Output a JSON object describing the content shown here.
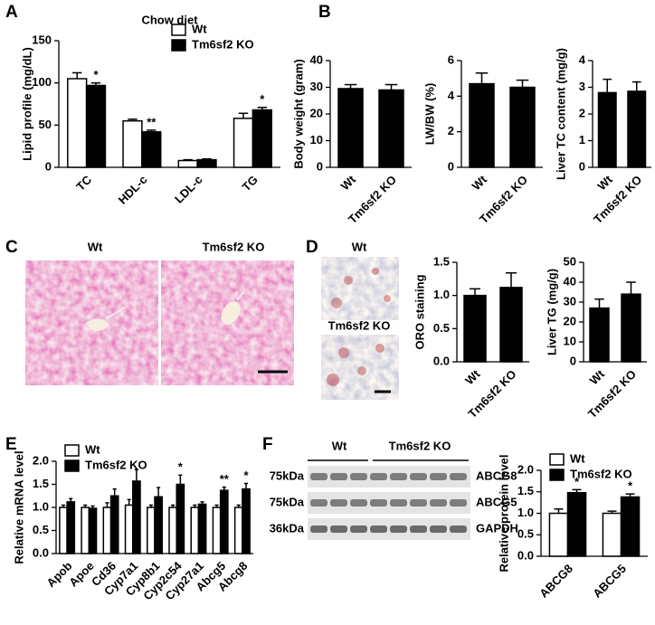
{
  "panels": [
    "A",
    "B",
    "C",
    "D",
    "E",
    "F"
  ],
  "histology": {
    "labels": [
      "Wt",
      "Tm6sf2 KO"
    ]
  },
  "oro": {
    "labels": [
      "Wt",
      "Tm6sf2 KO"
    ]
  },
  "western_blot": {
    "groups": [
      "Wt",
      "Tm6sf2 KO"
    ],
    "sizes": [
      "75kDa",
      "75kDa",
      "36kDa"
    ],
    "proteins": [
      "ABCG8",
      "ABCG5",
      "GAPDH"
    ]
  },
  "chart_data": [
    {
      "type": "bar",
      "title": "Chow diet",
      "ylabel": "Lipid profile (mg/dL)",
      "categories": [
        "TC",
        "HDL-c",
        "LDL-c",
        "TG"
      ],
      "series": [
        {
          "name": "Wt",
          "color": "#ffffff",
          "values": [
            105,
            55,
            8,
            58
          ],
          "errors": [
            7,
            2,
            1,
            6
          ]
        },
        {
          "name": "Tm6sf2 KO",
          "color": "#000000",
          "values": [
            97,
            42,
            9,
            68
          ],
          "errors": [
            3,
            2,
            1,
            3
          ],
          "annotations": [
            "*",
            "**",
            null,
            "*"
          ]
        }
      ],
      "ylim": [
        0,
        150
      ],
      "yticks": [
        0,
        50,
        100,
        150
      ],
      "legend": "upper right"
    },
    {
      "type": "bar",
      "ylabel": "Body weight (gram)",
      "categories": [
        "Wt",
        "Tm6sf2 KO"
      ],
      "values": [
        29.5,
        29
      ],
      "errors": [
        1.5,
        2
      ],
      "color": "#000000",
      "ylim": [
        0,
        40
      ],
      "yticks": [
        0,
        10,
        20,
        30,
        40
      ]
    },
    {
      "type": "bar",
      "ylabel": "LW/BW (%)",
      "categories": [
        "Wt",
        "Tm6sf2 KO"
      ],
      "values": [
        4.7,
        4.5
      ],
      "errors": [
        0.6,
        0.4
      ],
      "color": "#000000",
      "ylim": [
        0,
        6
      ],
      "yticks": [
        0,
        2,
        4,
        6
      ]
    },
    {
      "type": "bar",
      "ylabel": "Liver TC content (mg/g)",
      "categories": [
        "Wt",
        "Tm6sf2 KO"
      ],
      "values": [
        2.8,
        2.85
      ],
      "errors": [
        0.5,
        0.35
      ],
      "color": "#000000",
      "ylim": [
        0,
        4
      ],
      "yticks": [
        0,
        1,
        2,
        3,
        4
      ]
    },
    {
      "type": "bar",
      "ylabel": "ORO staining",
      "categories": [
        "Wt",
        "Tm6sf2 KO"
      ],
      "values": [
        1.0,
        1.12
      ],
      "errors": [
        0.1,
        0.22
      ],
      "color": "#000000",
      "ylim": [
        0,
        1.5
      ],
      "yticks": [
        {
          "value": 0,
          "label": "0.0"
        },
        0.5,
        {
          "value": 1,
          "label": "1.0"
        },
        1.5
      ]
    },
    {
      "type": "bar",
      "ylabel": "Liver TG (mg/g)",
      "categories": [
        "Wt",
        "Tm6sf2 KO"
      ],
      "values": [
        27,
        34
      ],
      "errors": [
        4.5,
        6
      ],
      "color": "#000000",
      "ylim": [
        0,
        50
      ],
      "yticks": [
        0,
        10,
        20,
        30,
        40,
        50
      ]
    },
    {
      "type": "bar",
      "ylabel": "Relative mRNA level",
      "categories": [
        "Apob",
        "Apoe",
        "Cd36",
        "Cyp7a1",
        "Cyp8b1",
        "Cyp2c54",
        "Cyp27a1",
        "Abcg5",
        "Abcg8"
      ],
      "series": [
        {
          "name": "Wt",
          "color": "#ffffff",
          "values": [
            1,
            1,
            1,
            1.05,
            1,
            1,
            1,
            1,
            1
          ],
          "errors": [
            0.05,
            0.05,
            0.1,
            0.12,
            0.05,
            0.05,
            0.05,
            0.05,
            0.05
          ]
        },
        {
          "name": "Tm6sf2 KO",
          "color": "#000000",
          "values": [
            1.12,
            0.98,
            1.25,
            1.57,
            1.23,
            1.5,
            1.07,
            1.37,
            1.4
          ],
          "errors": [
            0.07,
            0.05,
            0.15,
            0.25,
            0.2,
            0.2,
            0.05,
            0.07,
            0.12
          ],
          "annotations": [
            null,
            null,
            null,
            null,
            null,
            "*",
            null,
            "**",
            "*"
          ]
        }
      ],
      "ylim": [
        0,
        2
      ],
      "yticks": [
        {
          "value": 0,
          "label": "0.0"
        },
        0.5,
        {
          "value": 1,
          "label": "1.0"
        },
        1.5,
        {
          "value": 2,
          "label": "2.0"
        }
      ],
      "legend": "upper left"
    },
    {
      "type": "bar",
      "ylabel": "Relative protein level",
      "categories": [
        "ABCG8",
        "ABCG5"
      ],
      "series": [
        {
          "name": "Wt",
          "color": "#ffffff",
          "values": [
            1.0,
            1.0
          ],
          "errors": [
            0.1,
            0.05
          ]
        },
        {
          "name": "Tm6sf2 KO",
          "color": "#000000",
          "values": [
            1.48,
            1.38
          ],
          "errors": [
            0.07,
            0.07
          ],
          "annotations": [
            "*",
            "*"
          ]
        }
      ],
      "ylim": [
        0,
        2
      ],
      "yticks": [
        {
          "value": 0,
          "label": "0.0"
        },
        0.5,
        {
          "value": 1,
          "label": "1.0"
        },
        1.5,
        {
          "value": 2,
          "label": "2.0"
        }
      ],
      "legend": "upper left"
    }
  ]
}
